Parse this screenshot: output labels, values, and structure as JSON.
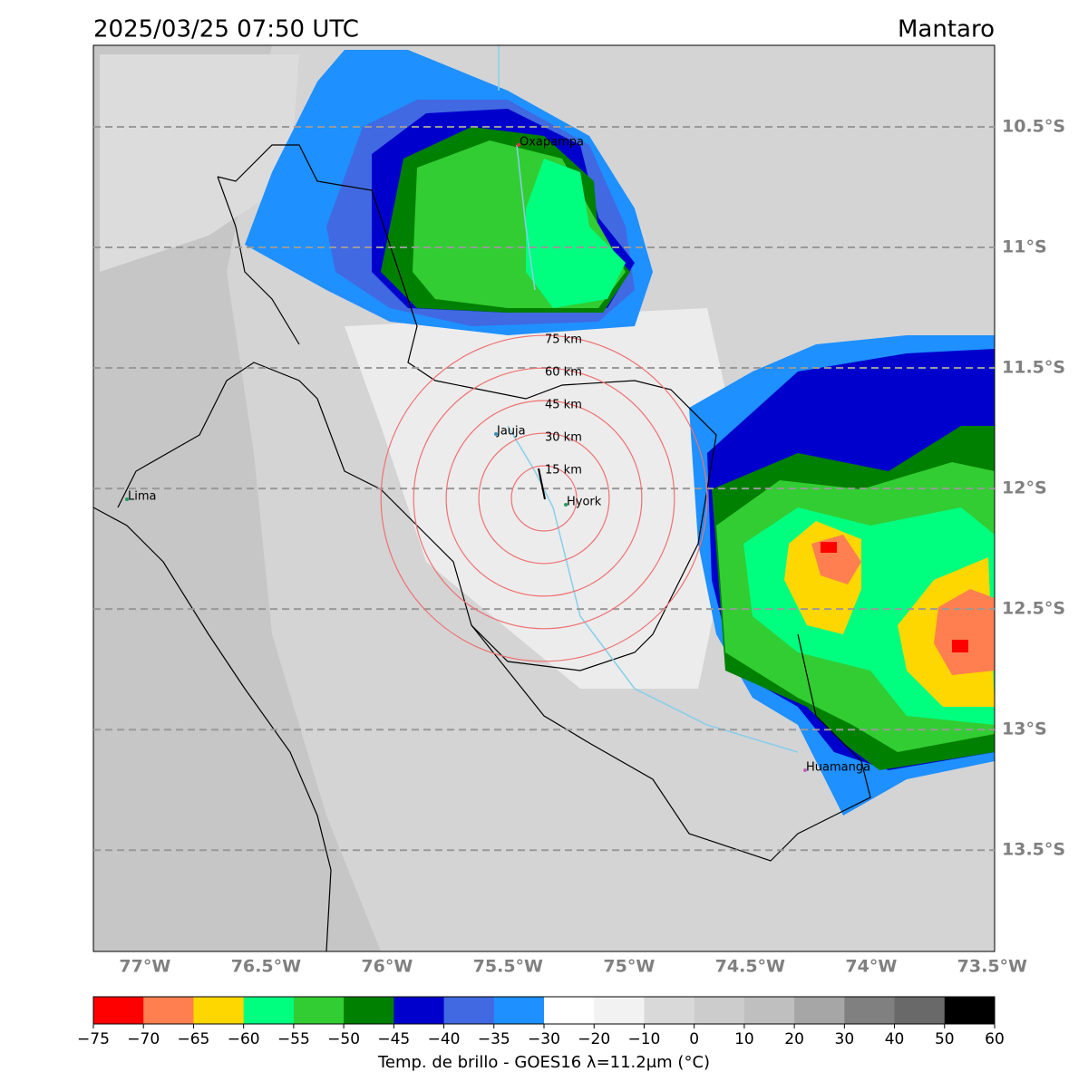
{
  "header": {
    "title": "2025/03/25 07:50 UTC",
    "region": "Mantaro"
  },
  "map": {
    "xlim": [
      -77.213,
      -73.49
    ],
    "ylim": [
      -13.92,
      -10.162
    ],
    "grid": true,
    "xticks": [
      {
        "value": -77,
        "label": "77°W"
      },
      {
        "value": -76.5,
        "label": "76.5°W"
      },
      {
        "value": -76,
        "label": "76°W"
      },
      {
        "value": -75.5,
        "label": "75.5°W"
      },
      {
        "value": -75,
        "label": "75°W"
      },
      {
        "value": -74.5,
        "label": "74.5°W"
      },
      {
        "value": -74,
        "label": "74°W"
      },
      {
        "value": -73.5,
        "label": "73.5°W"
      }
    ],
    "yticks": [
      {
        "value": -10.5,
        "label": "10.5°S"
      },
      {
        "value": -11,
        "label": "11°S"
      },
      {
        "value": -11.5,
        "label": "11.5°S"
      },
      {
        "value": -12,
        "label": "12°S"
      },
      {
        "value": -12.5,
        "label": "12.5°S"
      },
      {
        "value": -13,
        "label": "13°S"
      },
      {
        "value": -13.5,
        "label": "13.5°S"
      }
    ],
    "places": [
      {
        "name": "Oxapampa"
      },
      {
        "name": "Jauja"
      },
      {
        "name": "Lima"
      },
      {
        "name": "Hyork"
      },
      {
        "name": "Huamanga"
      }
    ],
    "rings": [
      {
        "value": 15,
        "label": "15 km"
      },
      {
        "value": 30,
        "label": "30 km"
      },
      {
        "value": 45,
        "label": "45 km"
      },
      {
        "value": 60,
        "label": "60 km"
      },
      {
        "value": 75,
        "label": "75 km"
      }
    ]
  },
  "colorbar": {
    "label": "Temp. de brillo - GOES16 λ=11.2μm (°C)",
    "ticks": [
      {
        "value": -75,
        "label": "−75"
      },
      {
        "value": -70,
        "label": "−70"
      },
      {
        "value": -65,
        "label": "−65"
      },
      {
        "value": -60,
        "label": "−60"
      },
      {
        "value": -55,
        "label": "−55"
      },
      {
        "value": -50,
        "label": "−50"
      },
      {
        "value": -45,
        "label": "−45"
      },
      {
        "value": -40,
        "label": "−40"
      },
      {
        "value": -35,
        "label": "−35"
      },
      {
        "value": -30,
        "label": "−30"
      },
      {
        "value": -20,
        "label": "−20"
      },
      {
        "value": -10,
        "label": "−10"
      },
      0,
      10,
      20,
      30,
      40,
      50,
      60
    ],
    "colors": [
      "#ff0000",
      "#ff7f50",
      "#ffd700",
      "#00ff7f",
      "#32cd32",
      "#008000",
      "#0000cd",
      "#4169e1",
      "#1e90ff",
      "#ffffff",
      "#f2f2f2",
      "#d9d9d9",
      "#cccccc",
      "#bfbfbf",
      "#a6a6a6",
      "#808080",
      "#696969",
      "#000000"
    ]
  }
}
